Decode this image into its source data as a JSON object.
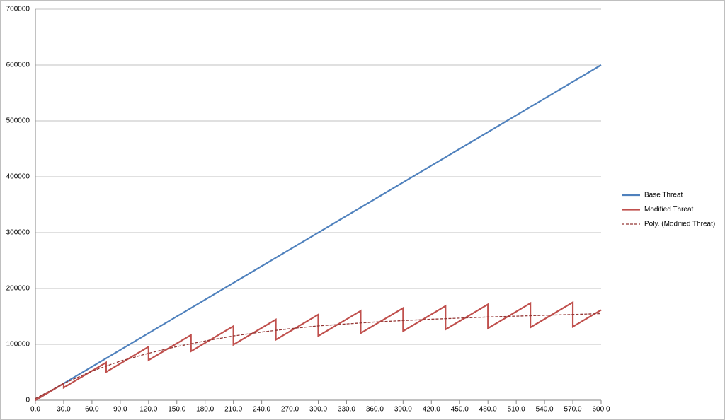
{
  "chart_data": {
    "type": "line",
    "xlim": [
      0,
      600
    ],
    "ylim": [
      0,
      700000
    ],
    "yticks": [
      0,
      100000,
      200000,
      300000,
      400000,
      500000,
      600000,
      700000
    ],
    "xticks": [
      {
        "value": 0,
        "label": "0.0"
      },
      {
        "value": 30,
        "label": "30.0"
      },
      {
        "value": 60,
        "label": "60.0"
      },
      {
        "value": 90,
        "label": "90.0"
      },
      {
        "value": 120,
        "label": "120.0"
      },
      {
        "value": 150,
        "label": "150.0"
      },
      {
        "value": 180,
        "label": "180.0"
      },
      {
        "value": 210,
        "label": "210.0"
      },
      {
        "value": 240,
        "label": "240.0"
      },
      {
        "value": 270,
        "label": "270.0"
      },
      {
        "value": 300,
        "label": "300.0"
      },
      {
        "value": 330,
        "label": "330.0"
      },
      {
        "value": 360,
        "label": "360.0"
      },
      {
        "value": 390,
        "label": "390.0"
      },
      {
        "value": 420,
        "label": "420.0"
      },
      {
        "value": 450,
        "label": "450.0"
      },
      {
        "value": 480,
        "label": "480.0"
      },
      {
        "value": 510,
        "label": "510.0"
      },
      {
        "value": 540,
        "label": "540.0"
      },
      {
        "value": 570,
        "label": "570.0"
      },
      {
        "value": 600,
        "label": "600.0"
      }
    ],
    "grid": true,
    "legend": "right",
    "series": [
      {
        "name": "Base Threat",
        "color": "#4f81bd",
        "x": [
          0,
          600
        ],
        "values": [
          0,
          600000
        ]
      },
      {
        "name": "Modified Threat",
        "color": "#c0504d",
        "x": [
          0,
          30,
          30,
          75,
          75,
          120,
          120,
          165,
          165,
          210,
          210,
          255,
          255,
          300,
          300,
          345,
          345,
          390,
          390,
          435,
          435,
          480,
          480,
          525,
          525,
          570,
          570,
          600
        ],
        "values": [
          0,
          30000,
          22500,
          67500,
          50600,
          95600,
          71700,
          116700,
          87500,
          132500,
          99400,
          144400,
          108300,
          153300,
          115000,
          160000,
          120000,
          165000,
          123700,
          168700,
          126600,
          171600,
          128700,
          173700,
          130300,
          175300,
          131500,
          161500
        ]
      },
      {
        "name": "Poly. (Modified Threat)",
        "color": "#943634",
        "dashed": true,
        "x": [
          0,
          30,
          60,
          90,
          120,
          150,
          180,
          210,
          240,
          270,
          300,
          360,
          420,
          480,
          540,
          600
        ],
        "values": [
          3000,
          30000,
          52000,
          70000,
          84000,
          96000,
          106000,
          115000,
          122000,
          128000,
          133000,
          140000,
          145000,
          149000,
          152000,
          155000
        ]
      }
    ]
  }
}
